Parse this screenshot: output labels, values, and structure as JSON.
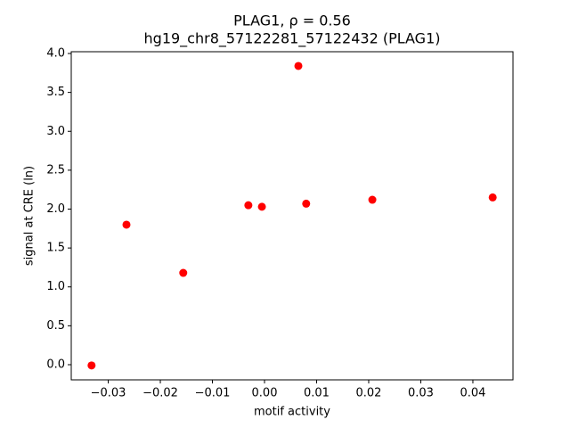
{
  "chart_data": {
    "type": "scatter",
    "title": "PLAG1, ρ = 0.56",
    "subtitle": "hg19_chr8_57122281_57122432 (PLAG1)",
    "x_label": "motif activity",
    "y_label": "signal at CRE (ln)",
    "color": "#ff0000",
    "x": [
      -0.0332,
      -0.0265,
      -0.0156,
      -0.0031,
      -0.0005,
      0.0065,
      0.008,
      0.0207,
      0.0438
    ],
    "values": [
      -0.01,
      1.8,
      1.18,
      2.05,
      2.03,
      3.84,
      2.07,
      2.12,
      2.15
    ],
    "xlim": [
      -0.0371,
      0.0477
    ],
    "ylim": [
      -0.195,
      4.023
    ],
    "xticks": [
      {
        "value": -0.03,
        "label": "−0.03"
      },
      {
        "value": -0.02,
        "label": "−0.02"
      },
      {
        "value": -0.01,
        "label": "−0.01"
      },
      {
        "value": 0,
        "label": "0.00"
      },
      {
        "value": 0.01,
        "label": "0.01"
      },
      {
        "value": 0.02,
        "label": "0.02"
      },
      {
        "value": 0.03,
        "label": "0.03"
      },
      {
        "value": 0.04,
        "label": "0.04"
      }
    ],
    "yticks": [
      {
        "value": 0,
        "label": "0.0"
      },
      0.5,
      {
        "value": 1,
        "label": "1.0"
      },
      1.5,
      {
        "value": 2,
        "label": "2.0"
      },
      2.5,
      {
        "value": 3,
        "label": "3.0"
      },
      3.5,
      {
        "value": 4,
        "label": "4.0"
      }
    ]
  }
}
